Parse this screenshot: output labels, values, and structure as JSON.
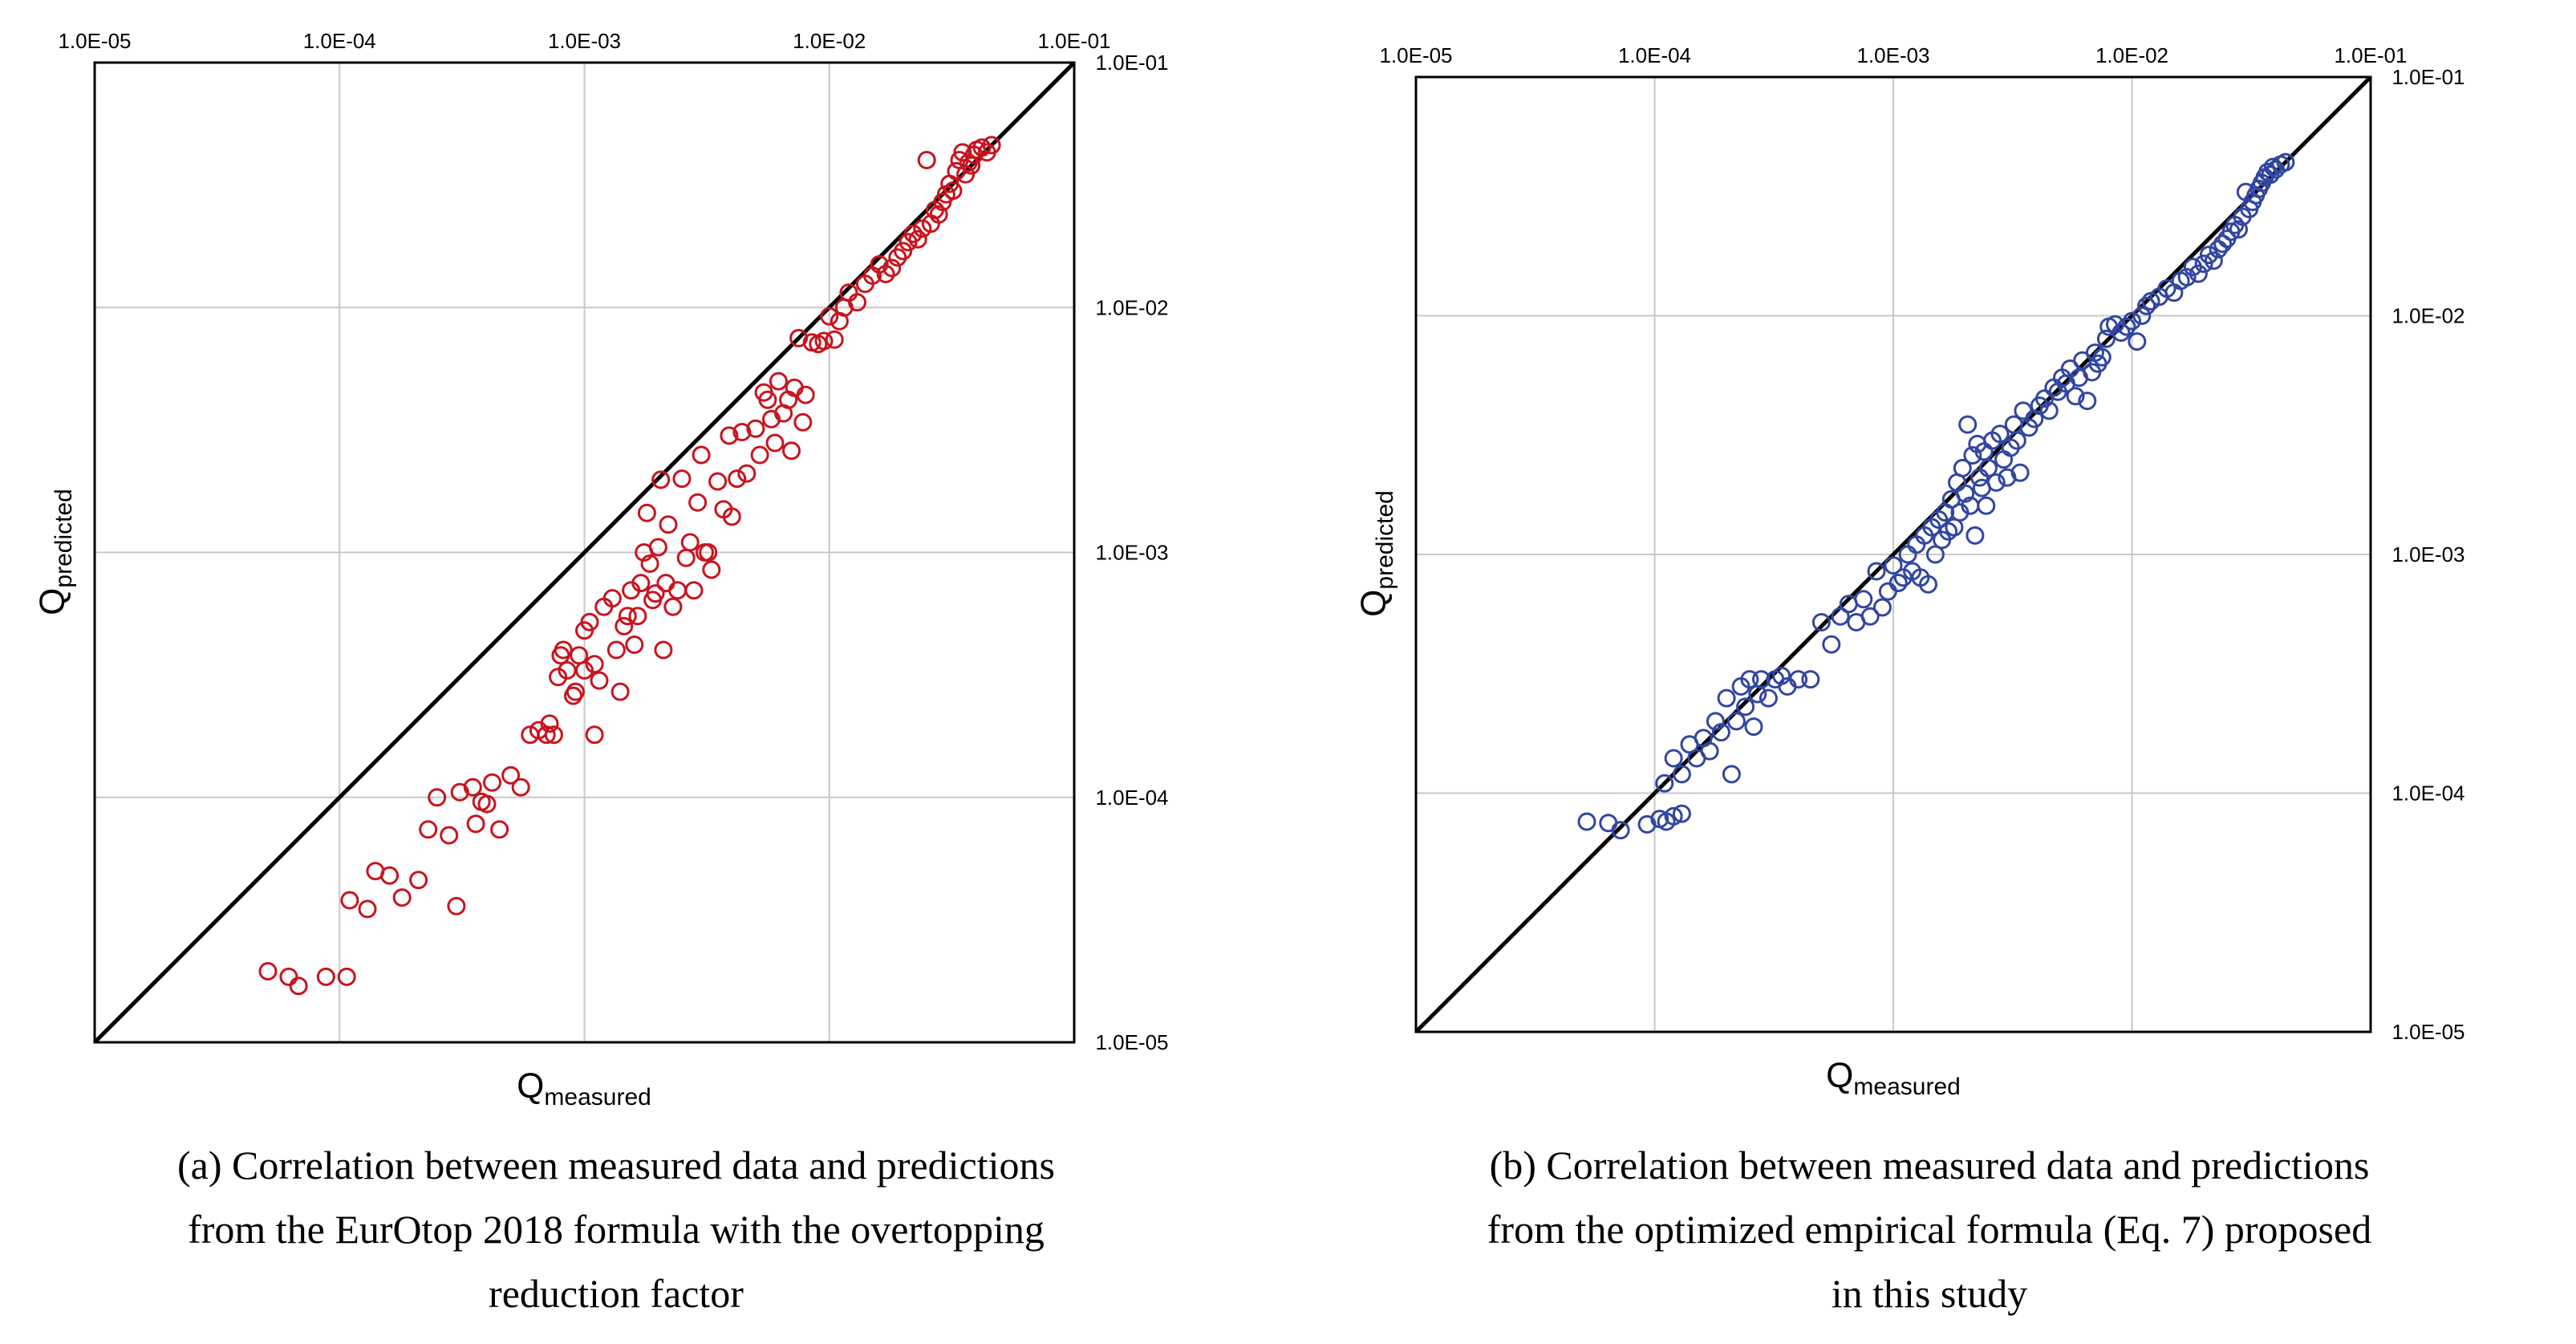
{
  "chart_data": [
    {
      "type": "scatter",
      "panel": "a",
      "xlabel": "Q",
      "xlabel_sub": "measured",
      "ylabel": "Q",
      "ylabel_sub": "predicted",
      "x_scale": "log10",
      "y_scale": "log10",
      "xlim": [
        1e-05,
        0.1
      ],
      "ylim": [
        1e-05,
        0.1
      ],
      "x_ticks": [
        "1.0E-05",
        "1.0E-04",
        "1.0E-03",
        "1.0E-02",
        "1.0E-01"
      ],
      "y_ticks": [
        "1.0E-05",
        "1.0E-04",
        "1.0E-03",
        "1.0E-02",
        "1.0E-01"
      ],
      "x_axis_position": "top",
      "y_axis_position": "right",
      "grid": true,
      "reference_line": "y = x",
      "marker": "open-circle",
      "color": "#c8141e",
      "points": [
        [
          5.1e-05,
          1.95e-05
        ],
        [
          6.2e-05,
          1.85e-05
        ],
        [
          6.8e-05,
          1.7e-05
        ],
        [
          8.8e-05,
          1.85e-05
        ],
        [
          0.000107,
          1.85e-05
        ],
        [
          0.00011,
          3.8e-05
        ],
        [
          0.00013,
          3.5e-05
        ],
        [
          0.00014,
          5e-05
        ],
        [
          0.00016,
          4.8e-05
        ],
        [
          0.00018,
          3.9e-05
        ],
        [
          0.00021,
          4.6e-05
        ],
        [
          0.00023,
          7.4e-05
        ],
        [
          0.00025,
          0.0001
        ],
        [
          0.00028,
          7e-05
        ],
        [
          0.0003,
          3.6e-05
        ],
        [
          0.00031,
          0.000105
        ],
        [
          0.00035,
          0.00011
        ],
        [
          0.00036,
          7.8e-05
        ],
        [
          0.00038,
          9.6e-05
        ],
        [
          0.0004,
          9.4e-05
        ],
        [
          0.00042,
          0.000115
        ],
        [
          0.00045,
          7.4e-05
        ],
        [
          0.0005,
          0.000123
        ],
        [
          0.00055,
          0.00011
        ],
        [
          0.0006,
          0.00018
        ],
        [
          0.00065,
          0.000188
        ],
        [
          0.0007,
          0.00018
        ],
        [
          0.00072,
          0.0002
        ],
        [
          0.00075,
          0.00018
        ],
        [
          0.00078,
          0.00031
        ],
        [
          0.0008,
          0.00038
        ],
        [
          0.00082,
          0.0004
        ],
        [
          0.00085,
          0.00033
        ],
        [
          0.0009,
          0.00026
        ],
        [
          0.00092,
          0.00027
        ],
        [
          0.00095,
          0.00038
        ],
        [
          0.001,
          0.00033
        ],
        [
          0.001,
          0.00048
        ],
        [
          0.00105,
          0.00052
        ],
        [
          0.0011,
          0.00018
        ],
        [
          0.0011,
          0.00035
        ],
        [
          0.00115,
          0.0003
        ],
        [
          0.0012,
          0.0006
        ],
        [
          0.0013,
          0.00065
        ],
        [
          0.00135,
          0.0004
        ],
        [
          0.0014,
          0.00027
        ],
        [
          0.00145,
          0.0005
        ],
        [
          0.0015,
          0.00055
        ],
        [
          0.00155,
          0.0007
        ],
        [
          0.0016,
          0.00042
        ],
        [
          0.00165,
          0.00055
        ],
        [
          0.0017,
          0.00075
        ],
        [
          0.00175,
          0.001
        ],
        [
          0.0018,
          0.00145
        ],
        [
          0.00185,
          0.0009
        ],
        [
          0.0019,
          0.00064
        ],
        [
          0.00195,
          0.00068
        ],
        [
          0.002,
          0.00105
        ],
        [
          0.00205,
          0.00198
        ],
        [
          0.0021,
          0.0004
        ],
        [
          0.00215,
          0.00075
        ],
        [
          0.0022,
          0.0013
        ],
        [
          0.0023,
          0.0006
        ],
        [
          0.0024,
          0.0007
        ],
        [
          0.0025,
          0.002
        ],
        [
          0.0026,
          0.00095
        ],
        [
          0.0027,
          0.0011
        ],
        [
          0.0028,
          0.0007
        ],
        [
          0.0029,
          0.0016
        ],
        [
          0.003,
          0.0025
        ],
        [
          0.0031,
          0.001
        ],
        [
          0.0032,
          0.001
        ],
        [
          0.0033,
          0.00085
        ],
        [
          0.0035,
          0.00195
        ],
        [
          0.0037,
          0.0015
        ],
        [
          0.0039,
          0.003
        ],
        [
          0.004,
          0.0014
        ],
        [
          0.0042,
          0.002
        ],
        [
          0.0044,
          0.0031
        ],
        [
          0.0046,
          0.0021
        ],
        [
          0.005,
          0.0032
        ],
        [
          0.0052,
          0.0025
        ],
        [
          0.0054,
          0.0045
        ],
        [
          0.0056,
          0.0042
        ],
        [
          0.0058,
          0.0035
        ],
        [
          0.006,
          0.0028
        ],
        [
          0.0062,
          0.005
        ],
        [
          0.0065,
          0.0037
        ],
        [
          0.0068,
          0.0042
        ],
        [
          0.007,
          0.0026
        ],
        [
          0.0072,
          0.0047
        ],
        [
          0.0075,
          0.0075
        ],
        [
          0.0078,
          0.0034
        ],
        [
          0.008,
          0.0044
        ],
        [
          0.0085,
          0.0072
        ],
        [
          0.009,
          0.0071
        ],
        [
          0.0095,
          0.0073
        ],
        [
          0.01,
          0.0092
        ],
        [
          0.0105,
          0.0074
        ],
        [
          0.011,
          0.0088
        ],
        [
          0.0115,
          0.01
        ],
        [
          0.012,
          0.0115
        ],
        [
          0.013,
          0.0105
        ],
        [
          0.014,
          0.0125
        ],
        [
          0.015,
          0.0135
        ],
        [
          0.016,
          0.015
        ],
        [
          0.017,
          0.0137
        ],
        [
          0.018,
          0.0145
        ],
        [
          0.019,
          0.016
        ],
        [
          0.02,
          0.017
        ],
        [
          0.021,
          0.0185
        ],
        [
          0.022,
          0.02
        ],
        [
          0.023,
          0.019
        ],
        [
          0.024,
          0.021
        ],
        [
          0.025,
          0.04
        ],
        [
          0.026,
          0.022
        ],
        [
          0.027,
          0.025
        ],
        [
          0.028,
          0.024
        ],
        [
          0.029,
          0.027
        ],
        [
          0.03,
          0.029
        ],
        [
          0.031,
          0.032
        ],
        [
          0.032,
          0.03
        ],
        [
          0.033,
          0.036
        ],
        [
          0.034,
          0.04
        ],
        [
          0.035,
          0.043
        ],
        [
          0.036,
          0.035
        ],
        [
          0.037,
          0.039
        ],
        [
          0.038,
          0.038
        ],
        [
          0.039,
          0.042
        ],
        [
          0.04,
          0.044
        ],
        [
          0.042,
          0.045
        ],
        [
          0.044,
          0.043
        ],
        [
          0.046,
          0.046
        ]
      ]
    },
    {
      "type": "scatter",
      "panel": "b",
      "xlabel": "Q",
      "xlabel_sub": "measured",
      "ylabel": "Q",
      "ylabel_sub": "predicted",
      "x_scale": "log10",
      "y_scale": "log10",
      "xlim": [
        1e-05,
        0.1
      ],
      "ylim": [
        1e-05,
        0.1
      ],
      "x_ticks": [
        "1.0E-05",
        "1.0E-04",
        "1.0E-03",
        "1.0E-02",
        "1.0E-01"
      ],
      "y_ticks": [
        "1.0E-05",
        "1.0E-04",
        "1.0E-03",
        "1.0E-02",
        "1.0E-01"
      ],
      "x_axis_position": "top",
      "y_axis_position": "right",
      "grid": true,
      "reference_line": "y = x",
      "marker": "open-circle",
      "color": "#3246a0",
      "points": [
        [
          5.2e-05,
          7.6e-05
        ],
        [
          6.4e-05,
          7.5e-05
        ],
        [
          7.2e-05,
          7e-05
        ],
        [
          9.3e-05,
          7.4e-05
        ],
        [
          0.000105,
          7.8e-05
        ],
        [
          0.000112,
          7.6e-05
        ],
        [
          0.00012,
          8e-05
        ],
        [
          0.00013,
          8.2e-05
        ],
        [
          0.00011,
          0.00011
        ],
        [
          0.00012,
          0.00014
        ],
        [
          0.00013,
          0.00012
        ],
        [
          0.00014,
          0.00016
        ],
        [
          0.00015,
          0.00014
        ],
        [
          0.00016,
          0.00017
        ],
        [
          0.00017,
          0.00015
        ],
        [
          0.00018,
          0.0002
        ],
        [
          0.00019,
          0.00018
        ],
        [
          0.0002,
          0.00025
        ],
        [
          0.00021,
          0.00012
        ],
        [
          0.00022,
          0.0002
        ],
        [
          0.00023,
          0.00028
        ],
        [
          0.00024,
          0.00023
        ],
        [
          0.00025,
          0.0003
        ],
        [
          0.00026,
          0.00019
        ],
        [
          0.00027,
          0.00026
        ],
        [
          0.00028,
          0.0003
        ],
        [
          0.0003,
          0.00025
        ],
        [
          0.00032,
          0.0003
        ],
        [
          0.00034,
          0.00031
        ],
        [
          0.00036,
          0.00028
        ],
        [
          0.0004,
          0.0003
        ],
        [
          0.00045,
          0.0003
        ],
        [
          0.0005,
          0.00052
        ],
        [
          0.00055,
          0.00042
        ],
        [
          0.0006,
          0.00055
        ],
        [
          0.00065,
          0.00062
        ],
        [
          0.0007,
          0.00052
        ],
        [
          0.00075,
          0.00065
        ],
        [
          0.0008,
          0.00055
        ],
        [
          0.00085,
          0.00085
        ],
        [
          0.0009,
          0.0006
        ],
        [
          0.00095,
          0.0007
        ],
        [
          0.001,
          0.0009
        ],
        [
          0.00105,
          0.00076
        ],
        [
          0.0011,
          0.0008
        ],
        [
          0.00115,
          0.001
        ],
        [
          0.0012,
          0.00085
        ],
        [
          0.00125,
          0.0011
        ],
        [
          0.0013,
          0.0008
        ],
        [
          0.00135,
          0.0012
        ],
        [
          0.0014,
          0.00075
        ],
        [
          0.00145,
          0.0013
        ],
        [
          0.0015,
          0.001
        ],
        [
          0.00155,
          0.0014
        ],
        [
          0.0016,
          0.00115
        ],
        [
          0.00165,
          0.0015
        ],
        [
          0.0017,
          0.00125
        ],
        [
          0.00175,
          0.0017
        ],
        [
          0.0018,
          0.0013
        ],
        [
          0.00185,
          0.002
        ],
        [
          0.0019,
          0.0015
        ],
        [
          0.00195,
          0.0023
        ],
        [
          0.002,
          0.0018
        ],
        [
          0.00205,
          0.0035
        ],
        [
          0.0021,
          0.0016
        ],
        [
          0.00215,
          0.0026
        ],
        [
          0.0022,
          0.0012
        ],
        [
          0.00225,
          0.0029
        ],
        [
          0.0023,
          0.0021
        ],
        [
          0.00235,
          0.0019
        ],
        [
          0.0024,
          0.0027
        ],
        [
          0.00245,
          0.0016
        ],
        [
          0.0025,
          0.0023
        ],
        [
          0.0026,
          0.003
        ],
        [
          0.0027,
          0.002
        ],
        [
          0.0028,
          0.0032
        ],
        [
          0.0029,
          0.0025
        ],
        [
          0.003,
          0.0021
        ],
        [
          0.0031,
          0.0028
        ],
        [
          0.0032,
          0.0035
        ],
        [
          0.0033,
          0.003
        ],
        [
          0.0034,
          0.0022
        ],
        [
          0.0035,
          0.004
        ],
        [
          0.0037,
          0.0034
        ],
        [
          0.0039,
          0.0037
        ],
        [
          0.0041,
          0.0042
        ],
        [
          0.0043,
          0.0045
        ],
        [
          0.0045,
          0.004
        ],
        [
          0.0047,
          0.005
        ],
        [
          0.0049,
          0.0048
        ],
        [
          0.0051,
          0.0055
        ],
        [
          0.0053,
          0.0052
        ],
        [
          0.0055,
          0.006
        ],
        [
          0.0058,
          0.0046
        ],
        [
          0.006,
          0.0055
        ],
        [
          0.0062,
          0.0065
        ],
        [
          0.0065,
          0.0044
        ],
        [
          0.0068,
          0.0058
        ],
        [
          0.007,
          0.007
        ],
        [
          0.0072,
          0.0063
        ],
        [
          0.0075,
          0.0067
        ],
        [
          0.0078,
          0.008
        ],
        [
          0.008,
          0.009
        ],
        [
          0.0085,
          0.0092
        ],
        [
          0.009,
          0.0085
        ],
        [
          0.0095,
          0.009
        ],
        [
          0.01,
          0.0095
        ],
        [
          0.0105,
          0.0078
        ],
        [
          0.011,
          0.01
        ],
        [
          0.0115,
          0.011
        ],
        [
          0.012,
          0.0115
        ],
        [
          0.013,
          0.012
        ],
        [
          0.014,
          0.013
        ],
        [
          0.015,
          0.0125
        ],
        [
          0.016,
          0.014
        ],
        [
          0.017,
          0.0145
        ],
        [
          0.018,
          0.016
        ],
        [
          0.019,
          0.015
        ],
        [
          0.02,
          0.0165
        ],
        [
          0.021,
          0.018
        ],
        [
          0.022,
          0.017
        ],
        [
          0.023,
          0.019
        ],
        [
          0.024,
          0.02
        ],
        [
          0.025,
          0.021
        ],
        [
          0.026,
          0.0225
        ],
        [
          0.027,
          0.024
        ],
        [
          0.028,
          0.023
        ],
        [
          0.029,
          0.026
        ],
        [
          0.03,
          0.033
        ],
        [
          0.031,
          0.028
        ],
        [
          0.032,
          0.03
        ],
        [
          0.033,
          0.032
        ],
        [
          0.034,
          0.034
        ],
        [
          0.035,
          0.036
        ],
        [
          0.036,
          0.038
        ],
        [
          0.037,
          0.04
        ],
        [
          0.038,
          0.039
        ],
        [
          0.039,
          0.042
        ],
        [
          0.04,
          0.041
        ],
        [
          0.042,
          0.043
        ],
        [
          0.044,
          0.044
        ]
      ]
    }
  ],
  "captions": {
    "a": [
      "(a) Correlation between measured data and predictions",
      "from the EurOtop 2018 formula with the overtopping",
      "reduction factor"
    ],
    "b": [
      "(b) Correlation between measured data and predictions",
      "from the optimized empirical formula (Eq. 7) proposed",
      "in this study"
    ]
  }
}
